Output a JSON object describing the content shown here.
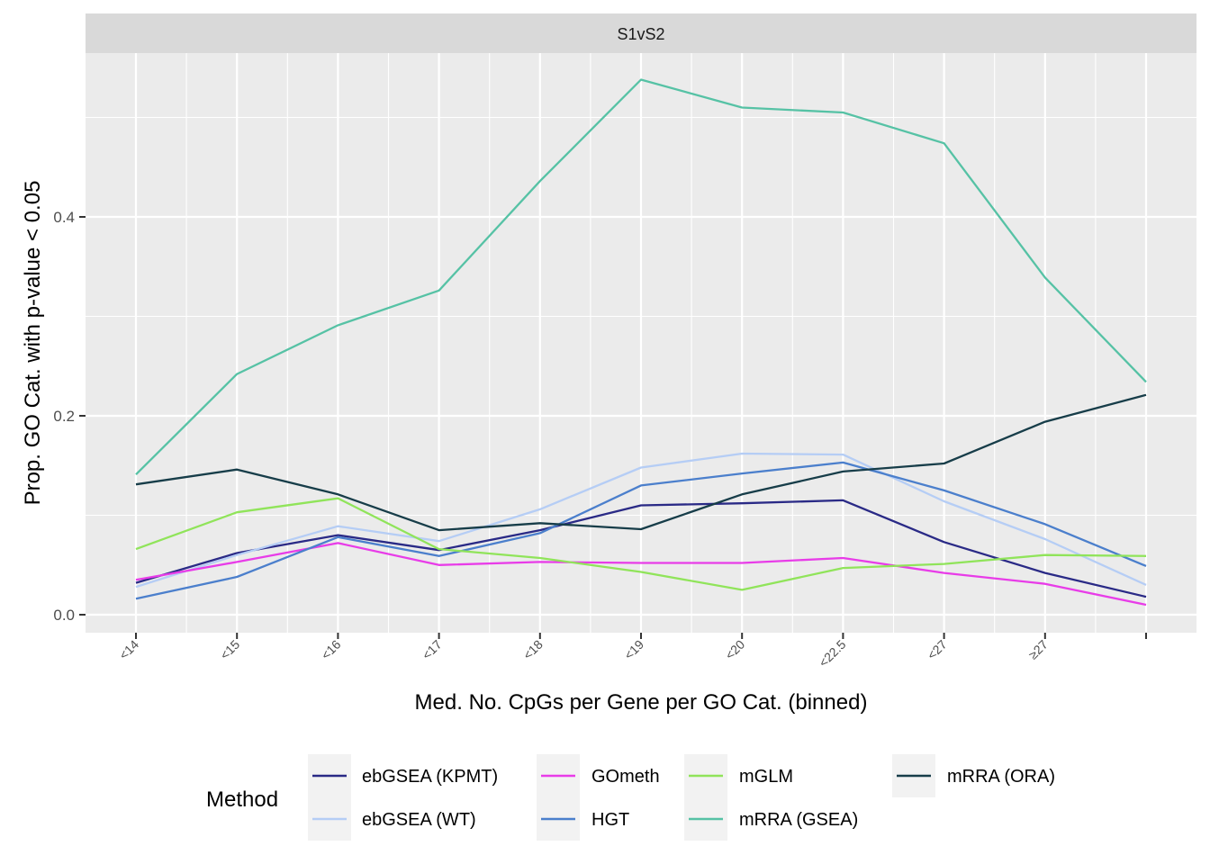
{
  "chart_data": {
    "type": "line",
    "facet_label": "S1vS2",
    "x": [
      "<14",
      "<15",
      "<16",
      "<17",
      "<18",
      "<19",
      "<20",
      "<22.5",
      "<27",
      "≥27",
      ""
    ],
    "xlabel": "Med. No. CpGs per Gene per GO Cat. (binned)",
    "ylabel": "Prop. GO Cat. with p-value < 0.05",
    "ylim": [
      -0.02,
      0.55
    ],
    "yticks": [
      0.0,
      0.2,
      0.4
    ],
    "ytick_labels": [
      "0.0",
      "0.2",
      "0.4"
    ],
    "grid": true,
    "legend": {
      "title": "Method",
      "position": "bottom",
      "order": [
        "ebGSEA (KPMT)",
        "ebGSEA (WT)",
        "GOmeth",
        "HGT",
        "mGLM",
        "mRRA (GSEA)",
        "mRRA (ORA)"
      ]
    },
    "series": [
      {
        "name": "ebGSEA (KPMT)",
        "color": "#2a2a86",
        "values": [
          0.032,
          0.062,
          0.08,
          0.065,
          0.085,
          0.11,
          0.112,
          0.115,
          0.073,
          0.042,
          0.018
        ]
      },
      {
        "name": "ebGSEA (WT)",
        "color": "#b5cdf5",
        "values": [
          0.028,
          0.06,
          0.089,
          0.074,
          0.106,
          0.148,
          0.162,
          0.161,
          0.114,
          0.076,
          0.03
        ]
      },
      {
        "name": "GOmeth",
        "color": "#e83ce8",
        "values": [
          0.035,
          0.053,
          0.072,
          0.05,
          0.053,
          0.052,
          0.052,
          0.057,
          0.042,
          0.031,
          0.01
        ]
      },
      {
        "name": "HGT",
        "color": "#4b7fcc",
        "values": [
          0.016,
          0.038,
          0.078,
          0.059,
          0.082,
          0.13,
          0.142,
          0.153,
          0.125,
          0.091,
          0.049
        ]
      },
      {
        "name": "mGLM",
        "color": "#90e45a",
        "values": [
          0.066,
          0.103,
          0.117,
          0.066,
          0.057,
          0.043,
          0.025,
          0.047,
          0.051,
          0.06,
          0.059
        ]
      },
      {
        "name": "mRRA (GSEA)",
        "color": "#56c2a5",
        "values": [
          0.141,
          0.242,
          0.291,
          0.326,
          0.436,
          0.538,
          0.51,
          0.505,
          0.474,
          0.339,
          0.234
        ]
      },
      {
        "name": "mRRA (ORA)",
        "color": "#173d49",
        "values": [
          0.131,
          0.146,
          0.121,
          0.085,
          0.092,
          0.086,
          0.121,
          0.144,
          0.152,
          0.194,
          0.221
        ]
      }
    ]
  }
}
